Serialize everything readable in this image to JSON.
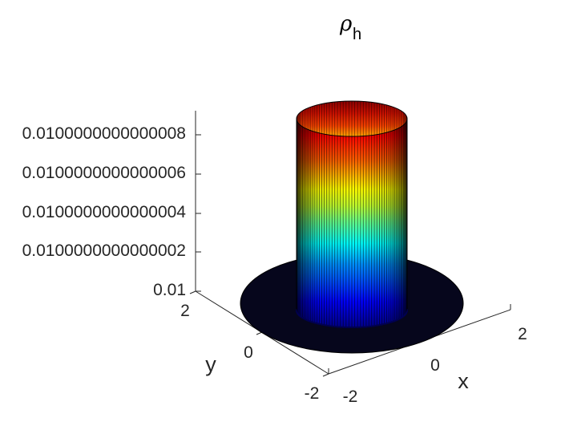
{
  "chart_data": {
    "type": "surface",
    "title": {
      "symbol": "ρ",
      "subscript": "h"
    },
    "xlabel": "x",
    "ylabel": "y",
    "zlabel": "",
    "x_ticks": [
      "-2",
      "0",
      "2"
    ],
    "y_ticks": [
      "-2",
      "0",
      "2"
    ],
    "z_ticks": [
      "0.01",
      "0.0100000000000002",
      "0.0100000000000004",
      "0.0100000000000006",
      "0.0100000000000008"
    ],
    "xlim": [
      -2.5,
      2.5
    ],
    "ylim": [
      -2.5,
      2.5
    ],
    "grid": false,
    "colormap": "jet",
    "domain": "disk",
    "domain_radius": 2,
    "plateau_radius": 1,
    "base_value": 0.01,
    "plateau_value": 0.0100000000000009
  }
}
